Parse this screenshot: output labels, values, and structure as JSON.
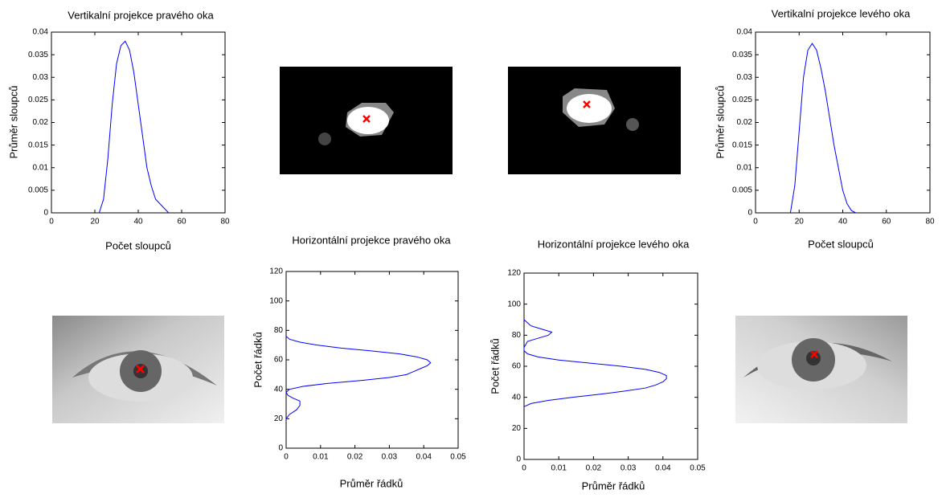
{
  "chart_data": [
    {
      "type": "line",
      "orientation": "vertical",
      "title": "Vertikalní projekce pravého oka",
      "x_label": "Počet sloupců",
      "y_label": "Průměr sloupců",
      "color": "#0000ff",
      "x": [
        22,
        24,
        26,
        28,
        30,
        32,
        34,
        36,
        38,
        40,
        42,
        44,
        46,
        48,
        50,
        52,
        54
      ],
      "values": [
        0,
        0.003,
        0.012,
        0.024,
        0.033,
        0.037,
        0.038,
        0.036,
        0.031,
        0.024,
        0.017,
        0.01,
        0.006,
        0.003,
        0.002,
        0.001,
        0
      ],
      "xlim": [
        0,
        80
      ],
      "xticks": [
        0,
        20,
        40,
        60,
        80
      ],
      "ylim": [
        0,
        0.04
      ],
      "yticks": [
        0,
        0.005,
        0.01,
        0.015,
        0.02,
        0.025,
        0.03,
        0.035,
        0.04
      ]
    },
    {
      "type": "line",
      "orientation": "horizontal",
      "title": "Horizontální projekce pravého oka",
      "x_label": "Průměr řádků",
      "y_label": "Počet řádků",
      "color": "#0000ff",
      "y": [
        20,
        23,
        26,
        29,
        32,
        34,
        36,
        38,
        40,
        42,
        44,
        46,
        48,
        50,
        52,
        54,
        56,
        58,
        60,
        62,
        64,
        66,
        68,
        70,
        72,
        74,
        76
      ],
      "values": [
        0,
        0.001,
        0.003,
        0.004,
        0.004,
        0.002,
        0.0005,
        0,
        0.001,
        0.005,
        0.012,
        0.022,
        0.03,
        0.035,
        0.037,
        0.039,
        0.041,
        0.042,
        0.041,
        0.038,
        0.033,
        0.025,
        0.016,
        0.009,
        0.004,
        0.001,
        0
      ],
      "xlim": [
        0,
        0.05
      ],
      "xticks": [
        0,
        0.01,
        0.02,
        0.03,
        0.04,
        0.05
      ],
      "ylim": [
        0,
        120
      ],
      "yticks": [
        0,
        20,
        40,
        60,
        80,
        100,
        120
      ]
    },
    {
      "type": "line",
      "orientation": "horizontal",
      "title": "Horizontální projekce levého oka",
      "x_label": "Průměr řádků",
      "y_label": "Počet řádků",
      "color": "#0000ff",
      "y": [
        34,
        36,
        38,
        40,
        42,
        44,
        46,
        48,
        50,
        52,
        54,
        56,
        58,
        60,
        62,
        64,
        66,
        68,
        70,
        72,
        74,
        76,
        78,
        80,
        82,
        84,
        86,
        88,
        90
      ],
      "values": [
        0,
        0.002,
        0.007,
        0.014,
        0.022,
        0.029,
        0.035,
        0.038,
        0.04,
        0.041,
        0.041,
        0.039,
        0.035,
        0.028,
        0.019,
        0.01,
        0.004,
        0.001,
        0,
        0,
        0.0005,
        0.001,
        0.004,
        0.007,
        0.008,
        0.005,
        0.002,
        0.001,
        0
      ],
      "xlim": [
        0,
        0.05
      ],
      "xticks": [
        0,
        0.01,
        0.02,
        0.03,
        0.04,
        0.05
      ],
      "ylim": [
        0,
        120
      ],
      "yticks": [
        0,
        20,
        40,
        60,
        80,
        100,
        120
      ]
    },
    {
      "type": "line",
      "orientation": "vertical",
      "title": "Vertikalní projekce levého oka",
      "x_label": "Počet sloupců",
      "y_label": "Průměr sloupců",
      "color": "#0000ff",
      "x": [
        16,
        18,
        20,
        22,
        24,
        26,
        28,
        30,
        32,
        34,
        36,
        38,
        40,
        42,
        44,
        46
      ],
      "values": [
        0,
        0.006,
        0.018,
        0.03,
        0.036,
        0.0375,
        0.036,
        0.032,
        0.027,
        0.021,
        0.015,
        0.01,
        0.005,
        0.002,
        0.0005,
        0
      ],
      "xlim": [
        0,
        80
      ],
      "xticks": [
        0,
        20,
        40,
        60,
        80
      ],
      "ylim": [
        0,
        0.04
      ],
      "yticks": [
        0,
        0.005,
        0.01,
        0.015,
        0.02,
        0.025,
        0.03,
        0.035,
        0.04
      ]
    }
  ]
}
